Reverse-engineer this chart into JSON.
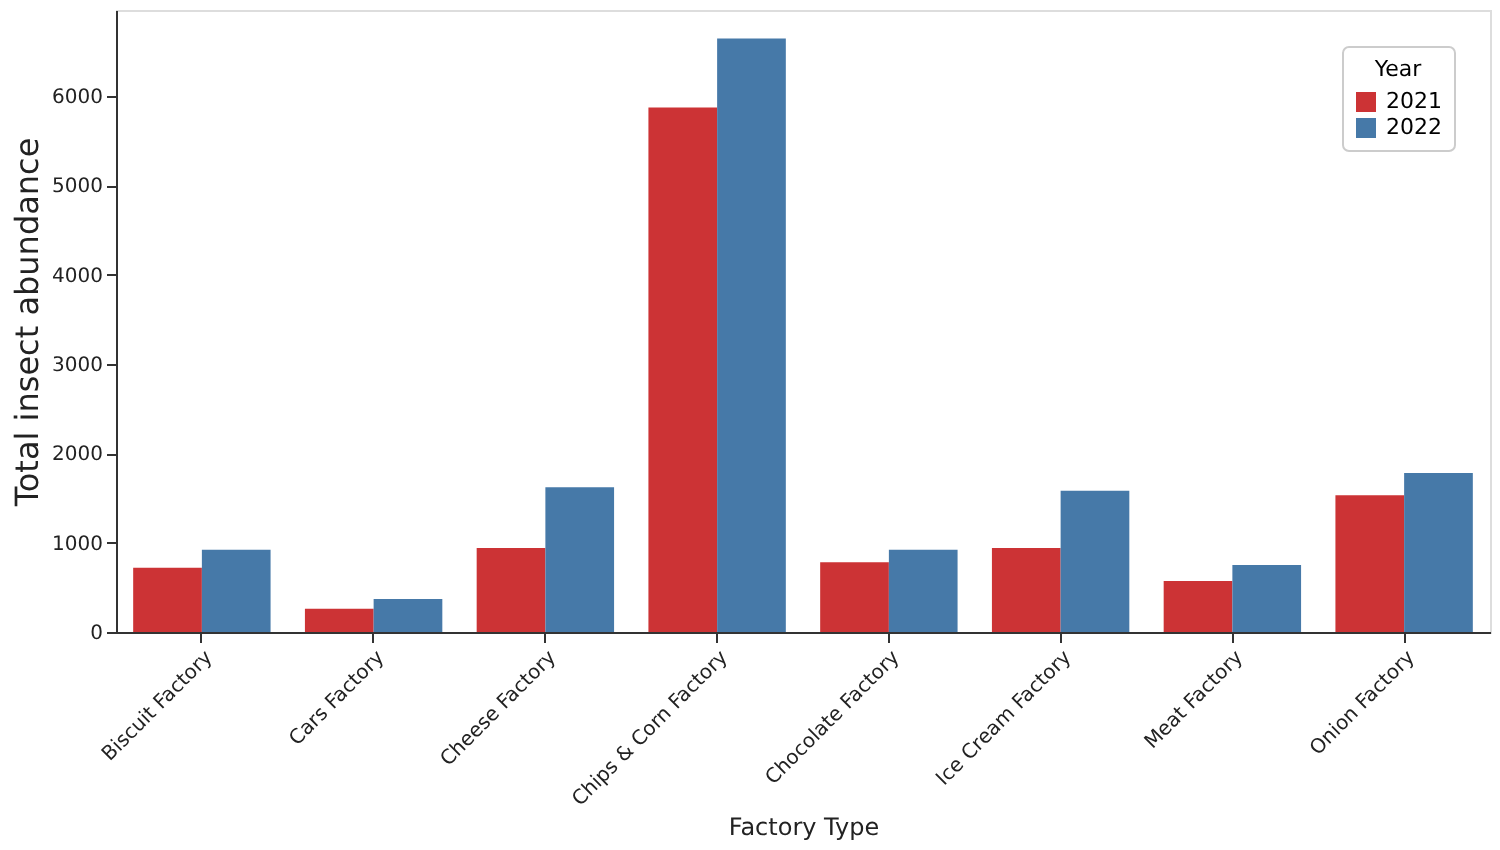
{
  "chart_data": {
    "type": "bar",
    "xlabel": "Factory Type",
    "ylabel": "Total insect abundance",
    "legend_title": "Year",
    "categories": [
      "Biscuit Factory",
      "Cars Factory",
      "Cheese Factory",
      "Chips & Corn Factory",
      "Chocolate Factory",
      "Ice Cream Factory",
      "Meat Factory",
      "Onion Factory"
    ],
    "series": [
      {
        "name": "2021",
        "color": "#cc3335",
        "values": [
          720,
          260,
          940,
          5870,
          780,
          940,
          570,
          1530
        ]
      },
      {
        "name": "2022",
        "color": "#4679a8",
        "values": [
          920,
          370,
          1620,
          6640,
          920,
          1580,
          750,
          1780
        ]
      }
    ],
    "ylim": [
      0,
      6960
    ],
    "yticks": [
      0,
      1000,
      2000,
      3000,
      4000,
      5000,
      6000
    ],
    "grid": false,
    "legend": "top right"
  }
}
